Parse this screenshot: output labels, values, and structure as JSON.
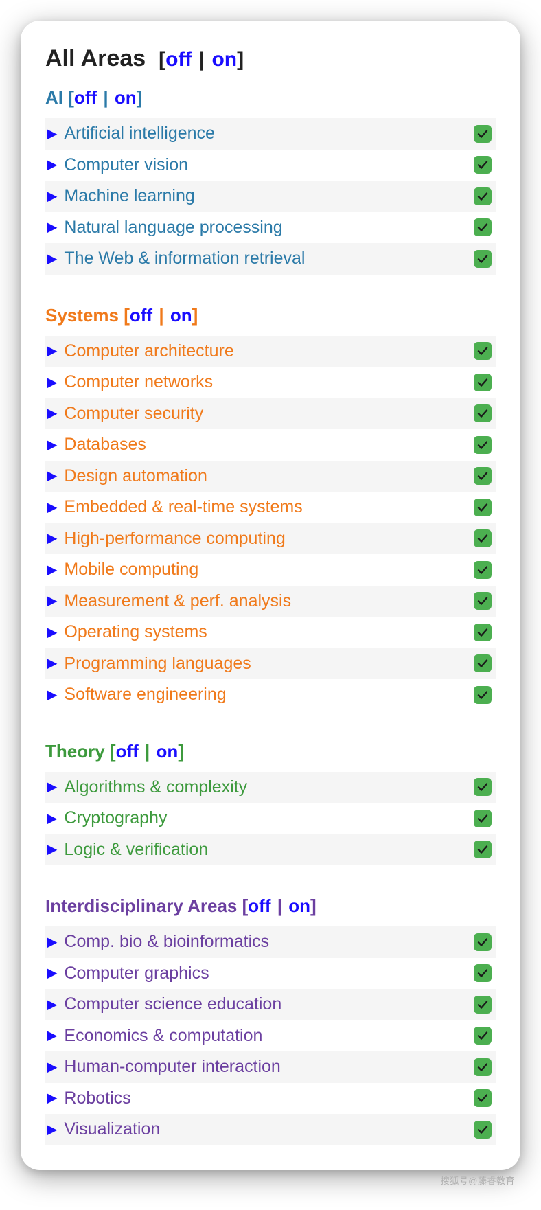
{
  "title": "All Areas",
  "toggle": {
    "off": "off",
    "on": "on"
  },
  "colors": {
    "link_blue": "#1a0dff",
    "ai": "#2b7aa8",
    "systems": "#f07a1b",
    "theory": "#3d9a3d",
    "interdisciplinary": "#6b3fa0",
    "checkbox_bg": "#4caf50",
    "stripe_bg": "#f5f5f5",
    "text_dark": "#222222"
  },
  "sections": [
    {
      "id": "ai",
      "name": "AI",
      "color_class": "c-ai",
      "items": [
        {
          "label": "Artificial intelligence",
          "checked": true
        },
        {
          "label": "Computer vision",
          "checked": true
        },
        {
          "label": "Machine learning",
          "checked": true
        },
        {
          "label": "Natural language processing",
          "checked": true
        },
        {
          "label": "The Web & information retrieval",
          "checked": true
        }
      ]
    },
    {
      "id": "systems",
      "name": "Systems",
      "color_class": "c-sys",
      "items": [
        {
          "label": "Computer architecture",
          "checked": true
        },
        {
          "label": "Computer networks",
          "checked": true
        },
        {
          "label": "Computer security",
          "checked": true
        },
        {
          "label": "Databases",
          "checked": true
        },
        {
          "label": "Design automation",
          "checked": true
        },
        {
          "label": "Embedded & real-time systems",
          "checked": true
        },
        {
          "label": "High-performance computing",
          "checked": true
        },
        {
          "label": "Mobile computing",
          "checked": true
        },
        {
          "label": "Measurement & perf. analysis",
          "checked": true
        },
        {
          "label": "Operating systems",
          "checked": true
        },
        {
          "label": "Programming languages",
          "checked": true
        },
        {
          "label": "Software engineering",
          "checked": true
        }
      ]
    },
    {
      "id": "theory",
      "name": "Theory",
      "color_class": "c-thy",
      "items": [
        {
          "label": "Algorithms & complexity",
          "checked": true
        },
        {
          "label": "Cryptography",
          "checked": true
        },
        {
          "label": "Logic & verification",
          "checked": true
        }
      ]
    },
    {
      "id": "interdisciplinary",
      "name": "Interdisciplinary Areas",
      "color_class": "c-int",
      "items": [
        {
          "label": "Comp. bio & bioinformatics",
          "checked": true
        },
        {
          "label": "Computer graphics",
          "checked": true
        },
        {
          "label": "Computer science education",
          "checked": true
        },
        {
          "label": "Economics & computation",
          "checked": true
        },
        {
          "label": "Human-computer interaction",
          "checked": true
        },
        {
          "label": "Robotics",
          "checked": true
        },
        {
          "label": "Visualization",
          "checked": true
        }
      ]
    }
  ],
  "watermark": "搜狐号@藤睿教育"
}
